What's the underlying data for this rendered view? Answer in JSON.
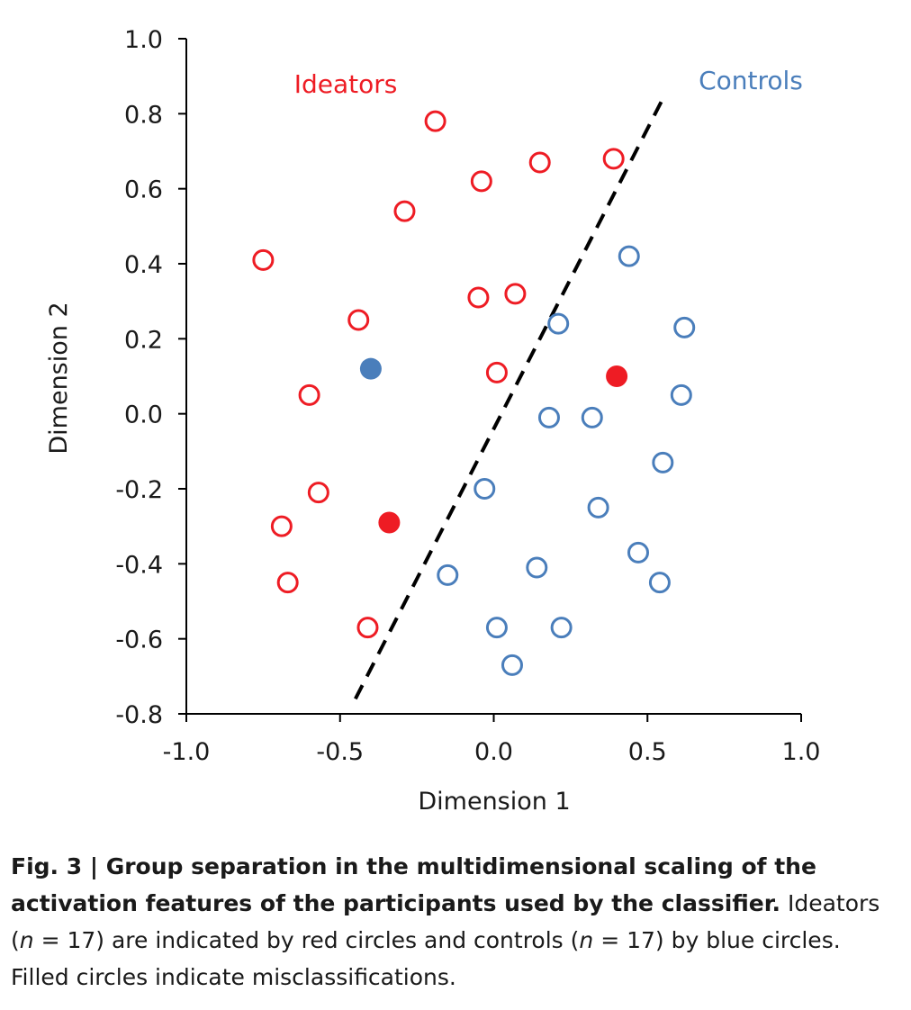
{
  "chart_data": {
    "type": "scatter",
    "xlabel": "Dimension 1",
    "ylabel": "Dimension 2",
    "xlim": [
      -1.0,
      1.0
    ],
    "ylim": [
      -0.8,
      1.0
    ],
    "x_ticks": [
      "-1.0",
      "-0.5",
      "0.0",
      "0.5",
      "1.0"
    ],
    "x_tick_values": [
      -1.0,
      -0.5,
      0.0,
      0.5,
      1.0
    ],
    "y_ticks": [
      "1.0",
      "0.8",
      "0.6",
      "0.4",
      "0.2",
      "0.0",
      "-0.2",
      "-0.4",
      "-0.6",
      "-0.8"
    ],
    "y_tick_values": [
      1.0,
      0.8,
      0.6,
      0.4,
      0.2,
      0.0,
      -0.2,
      -0.4,
      -0.6,
      -0.8
    ],
    "annotations": [
      {
        "text": "Ideators",
        "color": "#ee1c24"
      },
      {
        "text": "Controls",
        "color": "#4a7ebb"
      }
    ],
    "boundary_line": {
      "style": "dashed",
      "x": [
        -0.45,
        0.55
      ],
      "y": [
        -0.76,
        0.84
      ]
    },
    "series": [
      {
        "name": "Ideators",
        "color": "#ee1c24",
        "points": [
          {
            "x": -0.19,
            "y": 0.78,
            "filled": false
          },
          {
            "x": 0.15,
            "y": 0.67,
            "filled": false
          },
          {
            "x": 0.39,
            "y": 0.68,
            "filled": false
          },
          {
            "x": -0.04,
            "y": 0.62,
            "filled": false
          },
          {
            "x": -0.29,
            "y": 0.54,
            "filled": false
          },
          {
            "x": -0.75,
            "y": 0.41,
            "filled": false
          },
          {
            "x": -0.05,
            "y": 0.31,
            "filled": false
          },
          {
            "x": 0.07,
            "y": 0.32,
            "filled": false
          },
          {
            "x": -0.44,
            "y": 0.25,
            "filled": false
          },
          {
            "x": 0.01,
            "y": 0.11,
            "filled": false
          },
          {
            "x": -0.6,
            "y": 0.05,
            "filled": false
          },
          {
            "x": -0.57,
            "y": -0.21,
            "filled": false
          },
          {
            "x": -0.69,
            "y": -0.3,
            "filled": false
          },
          {
            "x": -0.67,
            "y": -0.45,
            "filled": false
          },
          {
            "x": -0.41,
            "y": -0.57,
            "filled": false
          },
          {
            "x": 0.4,
            "y": 0.1,
            "filled": true
          },
          {
            "x": -0.34,
            "y": -0.29,
            "filled": true
          }
        ]
      },
      {
        "name": "Controls",
        "color": "#4a7ebb",
        "points": [
          {
            "x": 0.44,
            "y": 0.42,
            "filled": false
          },
          {
            "x": 0.21,
            "y": 0.24,
            "filled": false
          },
          {
            "x": 0.62,
            "y": 0.23,
            "filled": false
          },
          {
            "x": 0.61,
            "y": 0.05,
            "filled": false
          },
          {
            "x": 0.18,
            "y": -0.01,
            "filled": false
          },
          {
            "x": 0.32,
            "y": -0.01,
            "filled": false
          },
          {
            "x": 0.55,
            "y": -0.13,
            "filled": false
          },
          {
            "x": -0.03,
            "y": -0.2,
            "filled": false
          },
          {
            "x": 0.34,
            "y": -0.25,
            "filled": false
          },
          {
            "x": 0.47,
            "y": -0.37,
            "filled": false
          },
          {
            "x": -0.15,
            "y": -0.43,
            "filled": false
          },
          {
            "x": 0.14,
            "y": -0.41,
            "filled": false
          },
          {
            "x": 0.54,
            "y": -0.45,
            "filled": false
          },
          {
            "x": 0.01,
            "y": -0.57,
            "filled": false
          },
          {
            "x": 0.22,
            "y": -0.57,
            "filled": false
          },
          {
            "x": 0.06,
            "y": -0.67,
            "filled": false
          },
          {
            "x": -0.4,
            "y": 0.12,
            "filled": true
          }
        ]
      }
    ]
  },
  "caption": {
    "fig_label": "Fig. 3 | ",
    "title": "Group separation in the multidimensional scaling of the activation features of the participants used by the classifier.",
    "text_1": " Ideators (",
    "n_symbol_1": "n",
    "n_value_1": " = 17) are indicated by red circles and controls (",
    "n_symbol_2": "n",
    "n_value_2": " = 17) by blue circles. Filled circles indicate misclassifications."
  }
}
